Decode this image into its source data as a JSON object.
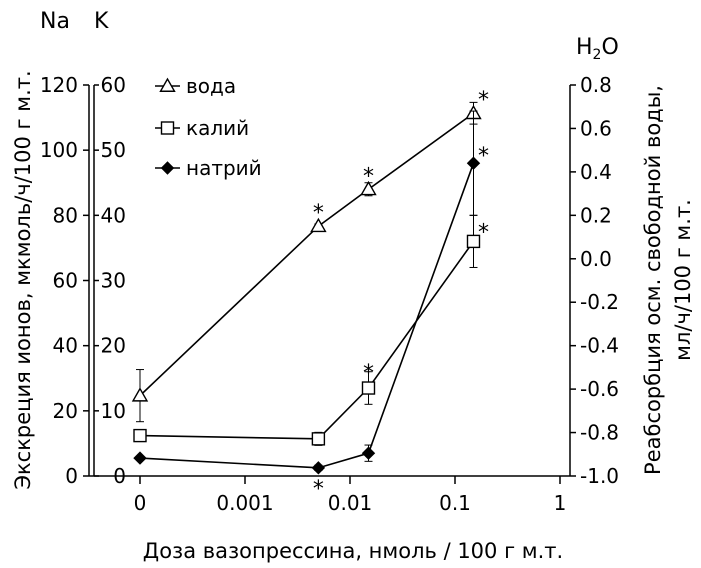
{
  "chart_data": {
    "type": "line",
    "left_axis_headers": [
      "Na",
      "K"
    ],
    "right_axis_header": "H₂O",
    "xlabel": "Доза вазопрессина, нмоль / 100 г м.т.",
    "ylabel_left": "Экскреция ионов, мкмоль/ч/100 г м.т.",
    "ylabel_right": [
      "Реабсорбция осм. свободной воды,",
      "мл/ч/100 г м.т."
    ],
    "x_scale": "log (0 shown at position of 0.0001)",
    "x_ticks": [
      "0",
      "0.001",
      "0.01",
      "0.1",
      "1"
    ],
    "x_tick_values": [
      0.0001,
      0.001,
      0.01,
      0.1,
      1
    ],
    "y_na_ticks": [
      "0",
      "20",
      "40",
      "60",
      "80",
      "100",
      "120"
    ],
    "y_na_lim": [
      0,
      120
    ],
    "y_k_ticks": [
      "0",
      "10",
      "20",
      "30",
      "40",
      "50",
      "60"
    ],
    "y_k_lim": [
      0,
      60
    ],
    "y_h2o_ticks": [
      "-1.0",
      "-0.8",
      "-0.6",
      "-0.4",
      "-0.2",
      "0.0",
      "0.2",
      "0.4",
      "0.6",
      "0.8"
    ],
    "y_h2o_lim": [
      -1.0,
      0.8
    ],
    "series": [
      {
        "name": "вода",
        "axis": "h2o",
        "marker": "triangle",
        "x": [
          0.0001,
          0.005,
          0.015,
          0.15
        ],
        "y": [
          -0.63,
          0.15,
          0.32,
          0.67
        ],
        "err": [
          0.12,
          0.01,
          0.03,
          0.05
        ],
        "significant": [
          false,
          true,
          true,
          true
        ]
      },
      {
        "name": "калий",
        "axis": "k",
        "marker": "square",
        "x": [
          0.0001,
          0.005,
          0.015,
          0.15
        ],
        "y": [
          6.2,
          5.7,
          13.5,
          36.0
        ],
        "err": [
          0.8,
          1.0,
          2.5,
          4.0
        ],
        "significant": [
          false,
          false,
          true,
          true
        ]
      },
      {
        "name": "натрий",
        "axis": "na",
        "marker": "diamond",
        "x": [
          0.0001,
          0.005,
          0.015,
          0.15
        ],
        "y": [
          5.5,
          2.5,
          7.0,
          96.0
        ],
        "err": [
          0.5,
          0.8,
          2.5,
          16.0
        ],
        "significant": [
          false,
          true,
          false,
          true
        ]
      }
    ],
    "significance_marker": "*",
    "legend_position": "top-left"
  }
}
